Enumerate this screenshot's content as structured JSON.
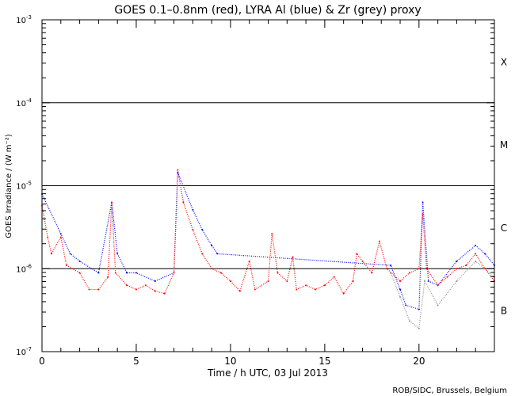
{
  "chart_data": {
    "type": "scatter",
    "title": "GOES 0.1–0.8nm (red), LYRA Al (blue) & Zr (grey) proxy",
    "xlabel": "Time / h UTC, 03 Jul 2013",
    "ylabel": "GOES Irradiance / (W m⁻²)",
    "credit": "ROB/SIDC, Brussels, Belgium",
    "xlim": [
      0,
      24
    ],
    "ylim_log10": [
      -7,
      -3
    ],
    "yscale": "log",
    "x_ticks": [
      {
        "value": 0,
        "label": "0"
      },
      {
        "value": 5,
        "label": "5"
      },
      {
        "value": 10,
        "label": "10"
      },
      {
        "value": 15,
        "label": "15"
      },
      {
        "value": 20,
        "label": "20"
      }
    ],
    "y_ticks": [
      {
        "exp": -3,
        "base": "10",
        "sup": "-3"
      },
      {
        "exp": -4,
        "base": "10",
        "sup": "-4"
      },
      {
        "exp": -5,
        "base": "10",
        "sup": "-5"
      },
      {
        "exp": -6,
        "base": "10",
        "sup": "-6"
      },
      {
        "exp": -7,
        "base": "10",
        "sup": "-7"
      }
    ],
    "reference_lines_log10": [
      -4,
      -5,
      -6
    ],
    "flare_classes": [
      {
        "label": "X",
        "log10_center": -3.5
      },
      {
        "label": "M",
        "log10_center": -4.5
      },
      {
        "label": "C",
        "log10_center": -5.5
      },
      {
        "label": "B",
        "log10_center": -6.5
      }
    ],
    "series": [
      {
        "name": "GOES 0.1-0.8nm",
        "color": "#ff0000",
        "x": [
          0,
          0.3,
          0.5,
          1.0,
          1.3,
          2,
          2.5,
          3,
          3.5,
          3.7,
          3.9,
          4.5,
          5,
          5.5,
          6,
          6.5,
          7,
          7.2,
          7.5,
          8,
          8.5,
          9,
          9.5,
          10,
          10.5,
          11,
          11.3,
          12,
          12.2,
          12.5,
          13,
          13.3,
          13.5,
          14,
          14.5,
          15,
          15.5,
          16,
          16.5,
          16.7,
          17,
          17.5,
          17.9,
          18.3,
          19,
          19.5,
          20,
          20.2,
          20.4,
          21,
          21.5,
          22,
          22.5,
          23,
          23.5,
          24
        ],
        "log10_y": [
          -5.24,
          -5.62,
          -5.82,
          -5.62,
          -5.96,
          -6.05,
          -6.25,
          -6.25,
          -6.1,
          -5.2,
          -6.05,
          -6.2,
          -6.25,
          -6.2,
          -6.27,
          -6.3,
          -6.05,
          -4.81,
          -5.2,
          -5.53,
          -5.82,
          -6.0,
          -6.05,
          -6.15,
          -6.27,
          -5.91,
          -6.25,
          -6.15,
          -5.58,
          -6.05,
          -6.15,
          -5.86,
          -6.25,
          -6.2,
          -6.25,
          -6.2,
          -6.1,
          -6.3,
          -6.15,
          -5.82,
          -5.91,
          -6.05,
          -5.67,
          -6.0,
          -6.15,
          -6.05,
          -6.0,
          -5.34,
          -6.0,
          -6.2,
          -6.1,
          -6.0,
          -5.96,
          -5.82,
          -6.0,
          -6.15
        ]
      },
      {
        "name": "LYRA Al proxy",
        "color": "#0000ff",
        "x": [
          0,
          1,
          1.5,
          2,
          3,
          3.7,
          4,
          4.5,
          5,
          6,
          7,
          7.2,
          8,
          8.5,
          9,
          9.3,
          18.5,
          19,
          19.3,
          20,
          20.2,
          20.5,
          21,
          22,
          23,
          23.5,
          24
        ],
        "log10_y": [
          -5.1,
          -5.58,
          -5.82,
          -5.91,
          -6.05,
          -5.2,
          -5.82,
          -6.05,
          -6.05,
          -6.15,
          -6.05,
          -4.84,
          -5.29,
          -5.53,
          -5.72,
          -5.82,
          -5.96,
          -6.25,
          -6.44,
          -6.49,
          -5.2,
          -6.15,
          -6.2,
          -5.91,
          -5.72,
          -5.82,
          -5.96
        ]
      },
      {
        "name": "LYRA Zr proxy",
        "color": "#909090",
        "x": [
          18.5,
          19,
          19.5,
          20,
          20.3,
          21,
          22,
          23,
          24
        ],
        "log10_y": [
          -6.05,
          -6.34,
          -6.63,
          -6.72,
          -6.15,
          -6.44,
          -6.15,
          -5.91,
          -6.1
        ]
      }
    ]
  }
}
